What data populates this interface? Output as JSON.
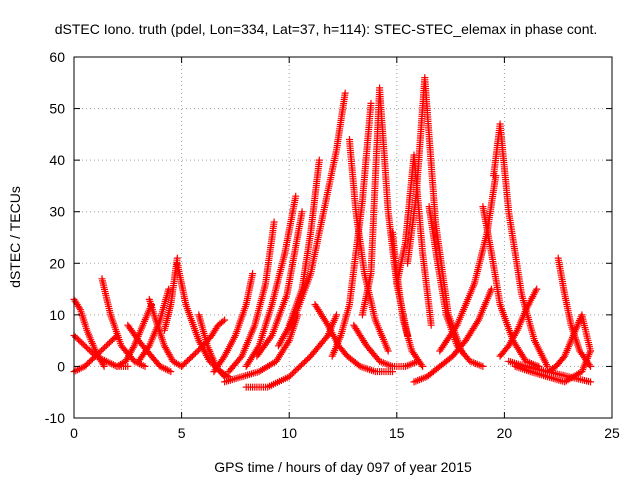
{
  "chart_data": {
    "type": "scatter",
    "title": "dSTEC Iono. truth (pdel, Lon=334, Lat=37, h=114): STEC-STEC_elemax in phase cont.",
    "xlabel": "GPS time / hours of day 097 of year 2015",
    "ylabel": "dSTEC  / TECUs",
    "xlim": [
      0,
      25
    ],
    "ylim": [
      -10,
      60
    ],
    "x_ticks": [
      0,
      5,
      10,
      15,
      20,
      25
    ],
    "y_ticks": [
      -10,
      0,
      10,
      20,
      30,
      40,
      50,
      60
    ],
    "x_tick_labels": [
      "0",
      "5",
      "10",
      "15",
      "20",
      "25"
    ],
    "y_tick_labels": [
      "-10",
      "0",
      "10",
      "20",
      "30",
      "40",
      "50",
      "60"
    ],
    "grid": true,
    "marker": "+",
    "color": "#ff0000",
    "series": [
      {
        "x": [
          0.0,
          0.3,
          0.6,
          1.0,
          1.4
        ],
        "y": [
          13,
          11,
          7,
          3,
          0
        ]
      },
      {
        "x": [
          0.0,
          0.5,
          1.0,
          1.5,
          2.0,
          2.5
        ],
        "y": [
          6,
          4,
          2,
          1,
          0,
          0
        ]
      },
      {
        "x": [
          0.0,
          0.5,
          1.0,
          1.5,
          2.0
        ],
        "y": [
          -1,
          0,
          2,
          4,
          6
        ]
      },
      {
        "x": [
          1.3,
          1.7,
          2.2,
          2.8,
          3.3
        ],
        "y": [
          17,
          10,
          4,
          1,
          0
        ]
      },
      {
        "x": [
          2.0,
          2.4,
          2.8,
          3.2,
          3.6
        ],
        "y": [
          0,
          1,
          4,
          8,
          12
        ]
      },
      {
        "x": [
          2.5,
          3.0,
          3.6,
          4.0,
          4.5
        ],
        "y": [
          8,
          5,
          2,
          0,
          -1
        ]
      },
      {
        "x": [
          3.0,
          3.5,
          4.0,
          4.4
        ],
        "y": [
          1,
          4,
          9,
          15
        ]
      },
      {
        "x": [
          3.5,
          3.8,
          4.2,
          4.6,
          5.0
        ],
        "y": [
          13,
          9,
          4,
          1,
          0
        ]
      },
      {
        "x": [
          4.2,
          4.5,
          4.8
        ],
        "y": [
          7,
          12,
          21
        ]
      },
      {
        "x": [
          4.8,
          5.2,
          5.8,
          6.3,
          6.8,
          7.2
        ],
        "y": [
          20,
          12,
          5,
          1,
          -1,
          -2
        ]
      },
      {
        "x": [
          5.0,
          5.5,
          6.0,
          6.4,
          6.7,
          7.0
        ],
        "y": [
          0,
          2,
          4,
          6,
          8,
          9
        ]
      },
      {
        "x": [
          5.8,
          6.2,
          6.6,
          7.0
        ],
        "y": [
          10,
          4,
          0,
          -2
        ]
      },
      {
        "x": [
          6.5,
          7.0,
          7.5,
          8.0,
          8.3
        ],
        "y": [
          -1,
          2,
          6,
          12,
          18
        ]
      },
      {
        "x": [
          7.2,
          7.8,
          8.4,
          8.9,
          9.3
        ],
        "y": [
          -1,
          2,
          8,
          16,
          28
        ]
      },
      {
        "x": [
          7.0,
          7.8,
          8.6,
          9.4,
          10.0,
          10.4
        ],
        "y": [
          -3,
          -2,
          -1,
          1,
          5,
          10
        ]
      },
      {
        "x": [
          8.0,
          8.6,
          9.2,
          9.8,
          10.3
        ],
        "y": [
          0,
          4,
          12,
          22,
          33
        ]
      },
      {
        "x": [
          8.5,
          9.2,
          9.9,
          10.6
        ],
        "y": [
          2,
          6,
          14,
          30
        ]
      },
      {
        "x": [
          8.0,
          9.0,
          10.0,
          11.0,
          11.8,
          12.2
        ],
        "y": [
          -4,
          -4,
          -2,
          2,
          6,
          10
        ]
      },
      {
        "x": [
          9.5,
          10.3,
          11.0,
          11.6,
          12.2,
          12.6
        ],
        "y": [
          4,
          10,
          18,
          30,
          42,
          53
        ]
      },
      {
        "x": [
          10.0,
          10.6,
          11.0,
          11.4
        ],
        "y": [
          8,
          15,
          26,
          40
        ]
      },
      {
        "x": [
          11.2,
          11.8,
          12.3,
          12.7,
          13.3,
          14.0,
          14.8
        ],
        "y": [
          12,
          8,
          4,
          2,
          0,
          -1,
          -1
        ]
      },
      {
        "x": [
          12.0,
          12.4,
          12.8,
          13.1,
          13.4,
          13.8
        ],
        "y": [
          2,
          6,
          12,
          22,
          32,
          51
        ]
      },
      {
        "x": [
          12.8,
          13.1,
          13.5,
          14.0,
          14.6
        ],
        "y": [
          44,
          30,
          18,
          9,
          3
        ]
      },
      {
        "x": [
          13.0,
          13.6,
          14.2,
          14.8,
          15.4,
          16.0
        ],
        "y": [
          8,
          4,
          1,
          0,
          0,
          1
        ]
      },
      {
        "x": [
          13.4,
          13.8,
          14.2,
          14.6,
          15.0,
          15.5
        ],
        "y": [
          10,
          18,
          54,
          30,
          16,
          6
        ]
      },
      {
        "x": [
          14.8,
          15.0,
          15.3,
          15.7,
          16.2
        ],
        "y": [
          26,
          18,
          9,
          3,
          0
        ]
      },
      {
        "x": [
          15.0,
          15.4,
          15.8,
          16.2,
          16.6
        ],
        "y": [
          16,
          24,
          41,
          22,
          8
        ]
      },
      {
        "x": [
          15.5,
          15.9,
          16.3,
          16.8,
          17.4,
          18.0
        ],
        "y": [
          20,
          33,
          56,
          28,
          10,
          3
        ]
      },
      {
        "x": [
          16.5,
          16.9,
          17.3,
          17.8,
          18.4,
          19.0
        ],
        "y": [
          31,
          20,
          10,
          4,
          1,
          0
        ]
      },
      {
        "x": [
          15.8,
          16.4,
          17.0,
          17.6,
          18.2,
          18.8,
          19.4
        ],
        "y": [
          -3,
          -2,
          0,
          2,
          5,
          9,
          15
        ]
      },
      {
        "x": [
          17.0,
          17.8,
          18.6,
          19.2,
          19.6
        ],
        "y": [
          3,
          8,
          16,
          26,
          37
        ]
      },
      {
        "x": [
          19.0,
          19.4,
          19.8,
          20.4,
          21.0,
          21.6
        ],
        "y": [
          31,
          22,
          12,
          5,
          1,
          0
        ]
      },
      {
        "x": [
          19.5,
          19.8,
          20.2,
          20.8,
          21.4,
          22.0
        ],
        "y": [
          37,
          47,
          30,
          14,
          5,
          0
        ]
      },
      {
        "x": [
          19.8,
          20.2,
          20.6,
          21.0,
          21.5
        ],
        "y": [
          2,
          4,
          7,
          11,
          15
        ]
      },
      {
        "x": [
          20.2,
          21.0,
          22.0,
          23.0,
          24.0
        ],
        "y": [
          1,
          0,
          -1,
          -2,
          -3
        ]
      },
      {
        "x": [
          20.5,
          21.2,
          22.0,
          22.8,
          23.6,
          24.0
        ],
        "y": [
          0,
          -1,
          -2,
          -3,
          -1,
          3
        ]
      },
      {
        "x": [
          22.5,
          22.8,
          23.1,
          23.5,
          24.0
        ],
        "y": [
          21,
          14,
          8,
          3,
          0
        ]
      },
      {
        "x": [
          22.0,
          22.4,
          22.8,
          23.2,
          23.6,
          24.0
        ],
        "y": [
          -1,
          0,
          2,
          6,
          10,
          3
        ]
      }
    ]
  }
}
